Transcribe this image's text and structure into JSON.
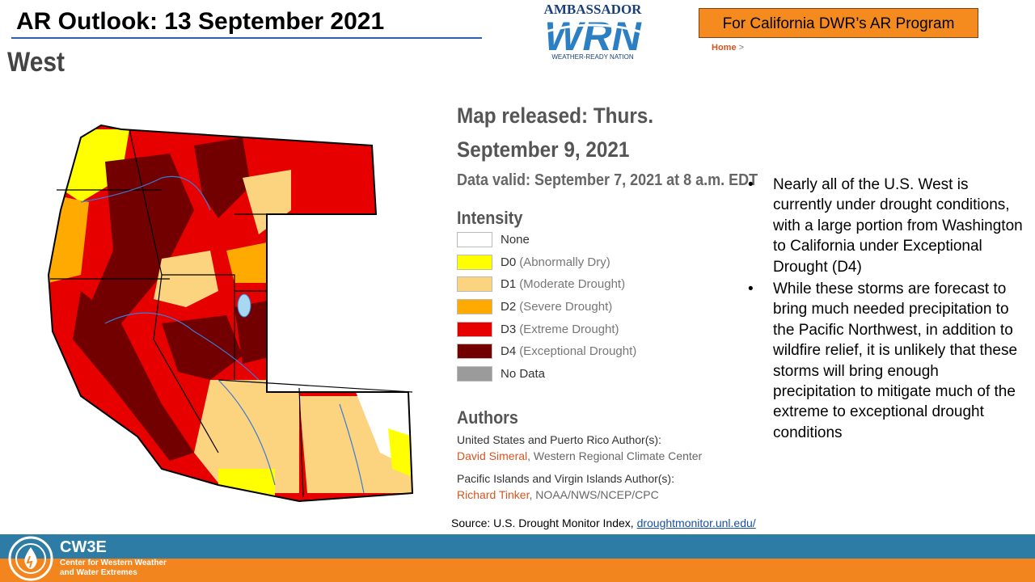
{
  "header": {
    "title": "AR Outlook: 13 September 2021",
    "region": "West",
    "program_box": "For California DWR’s AR Program",
    "logo_top": "AMBASSADOR",
    "logo_mark": "WRN",
    "logo_bottom": "WEATHER-READY NATION",
    "breadcrumb_home": "Home",
    "breadcrumb_sep": ">"
  },
  "map_panel": {
    "released": "Map released: Thurs. September 9, 2021",
    "valid": "Data valid: September 7, 2021 at 8 a.m. EDT",
    "intensity_heading": "Intensity",
    "legend": [
      {
        "code": "None",
        "desc": "",
        "color": "#ffffff"
      },
      {
        "code": "D0",
        "desc": "(Abnormally Dry)",
        "color": "#ffff00"
      },
      {
        "code": "D1",
        "desc": "(Moderate Drought)",
        "color": "#fcd37f"
      },
      {
        "code": "D2",
        "desc": "(Severe Drought)",
        "color": "#ffaa00"
      },
      {
        "code": "D3",
        "desc": "(Extreme Drought)",
        "color": "#e60000"
      },
      {
        "code": "D4",
        "desc": "(Exceptional Drought)",
        "color": "#730000"
      },
      {
        "code": "No Data",
        "desc": "",
        "color": "#9b9b9b"
      }
    ],
    "authors_heading": "Authors",
    "author_groups": [
      {
        "role": "United States and Puerto Rico Author(s):",
        "name": "David Simeral",
        "org": ", Western Regional Climate Center"
      },
      {
        "role": "Pacific Islands and Virgin Islands Author(s):",
        "name": "Richard Tinker",
        "org": ", NOAA/NWS/NCEP/CPC"
      }
    ]
  },
  "bullets": [
    "Nearly all of the U.S. West is currently under drought conditions, with a large portion from Washington to California under Exceptional Drought (D4)",
    "While these storms are forecast to bring much needed precipitation to the Pacific Northwest, in addition to wildfire relief, it is unlikely that these storms will bring enough precipitation to mitigate much of the extreme to exceptional drought conditions"
  ],
  "source": {
    "text": "Source: U.S. Drought Monitor Index,",
    "link": "droughtmonitor.unl.edu/"
  },
  "footer": {
    "brand": "CW3E",
    "subtitle_line1": "Center for Western Weather",
    "subtitle_line2": "and Water Extremes"
  },
  "colors": {
    "accent_orange": "#f58b1f",
    "footer_blue": "#2d7ca6",
    "footer_orange": "#f2851e",
    "link_orange": "#d9541e"
  }
}
